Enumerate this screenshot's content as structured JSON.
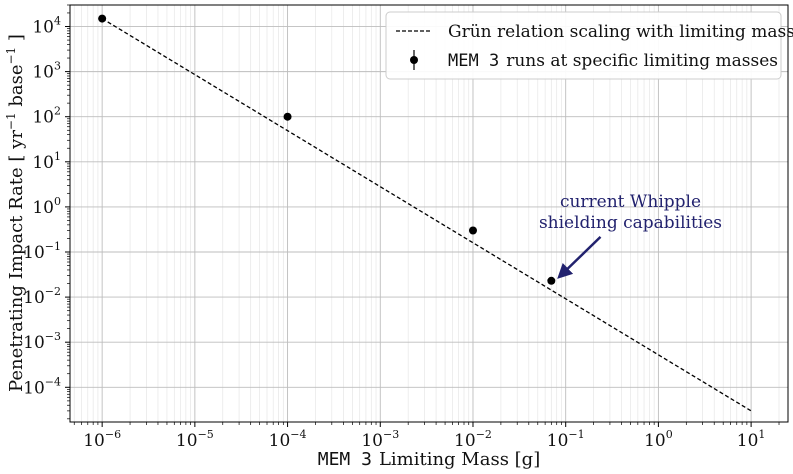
{
  "chart_data": {
    "type": "line",
    "xscale": "log",
    "yscale": "log",
    "xlim": [
      4.5e-07,
      25.0
    ],
    "ylim": [
      1.7e-05,
      30000.0
    ],
    "xlabel": {
      "prefix": "MEM 3",
      "text": "Limiting Mass [g]"
    },
    "ylabel": {
      "text": "Penetrating Impact Rate [ yr",
      "sup1": "−1",
      "mid": " base",
      "sup2": "−1",
      "suffix": " ]"
    },
    "x_ticks": [
      {
        "base": "10",
        "exp": "−6",
        "value": 1e-06
      },
      {
        "base": "10",
        "exp": "−5",
        "value": 1e-05
      },
      {
        "base": "10",
        "exp": "−4",
        "value": 0.0001
      },
      {
        "base": "10",
        "exp": "−3",
        "value": 0.001
      },
      {
        "base": "10",
        "exp": "−2",
        "value": 0.01
      },
      {
        "base": "10",
        "exp": "−1",
        "value": 0.1
      },
      {
        "base": "10",
        "exp": "0",
        "value": 1
      },
      {
        "base": "10",
        "exp": "1",
        "value": 10
      }
    ],
    "y_ticks": [
      {
        "base": "10",
        "exp": "−4",
        "value": 0.0001
      },
      {
        "base": "10",
        "exp": "−3",
        "value": 0.001
      },
      {
        "base": "10",
        "exp": "−2",
        "value": 0.01
      },
      {
        "base": "10",
        "exp": "−1",
        "value": 0.1
      },
      {
        "base": "10",
        "exp": "0",
        "value": 1
      },
      {
        "base": "10",
        "exp": "1",
        "value": 10
      },
      {
        "base": "10",
        "exp": "2",
        "value": 100
      },
      {
        "base": "10",
        "exp": "3",
        "value": 1000
      },
      {
        "base": "10",
        "exp": "4",
        "value": 10000
      }
    ],
    "grid": true,
    "legend_position": "top-right",
    "series": [
      {
        "name": "Grün relation scaling with limiting mass",
        "style": "dashed-line",
        "color": "#000000",
        "x": [
          1e-06,
          10
        ],
        "y": [
          15000,
          3e-05
        ]
      },
      {
        "name": "MEM 3 runs at specific limiting masses",
        "name_prefix": "MEM 3",
        "name_rest": "runs at specific limiting masses",
        "style": "markers",
        "color": "#000000",
        "x": [
          1e-06,
          0.0001,
          0.01,
          0.07
        ],
        "y": [
          15000,
          100,
          0.3,
          0.023
        ]
      }
    ],
    "annotation": {
      "line1": "current Whipple",
      "line2": "shielding capabilities",
      "color": "#22226e",
      "target": {
        "x": 0.07,
        "y": 0.023
      },
      "text_anchor": {
        "x": 0.5,
        "y": 0.6
      }
    }
  }
}
